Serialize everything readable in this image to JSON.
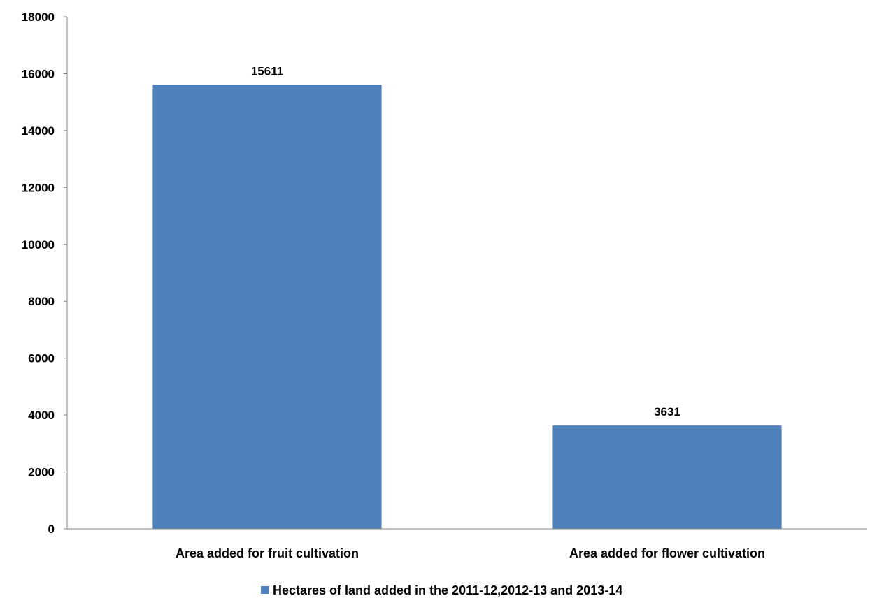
{
  "chart_data": {
    "type": "bar",
    "categories": [
      "Area added for fruit cultivation",
      "Area added for flower cultivation"
    ],
    "series": [
      {
        "name": "Hectares of land added in the 2011-12,2012-13 and 2013-14",
        "values": [
          15611,
          3631
        ],
        "color": "#4F81BD"
      }
    ],
    "data_labels": [
      "15611",
      "3631"
    ],
    "yticks": [
      "0",
      "2000",
      "4000",
      "6000",
      "8000",
      "10000",
      "12000",
      "14000",
      "16000",
      "18000"
    ],
    "ylim": [
      0,
      18000
    ],
    "grid": false,
    "legend_position": "bottom"
  }
}
